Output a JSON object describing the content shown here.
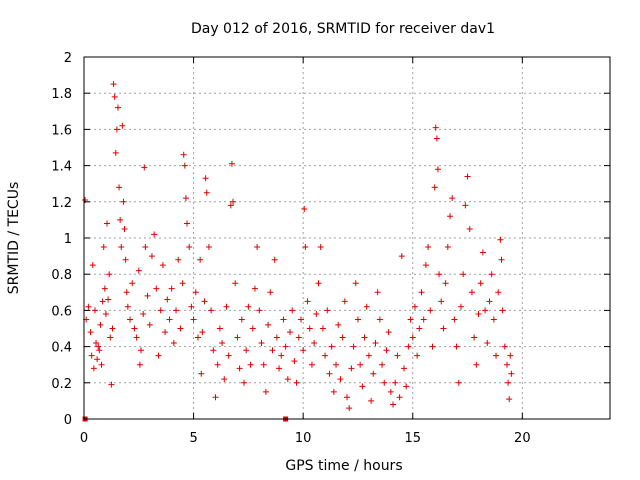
{
  "chart_data": {
    "type": "scatter",
    "title": "Day 012 of 2016, SRMTID for receiver dav1",
    "xlabel": "GPS time / hours",
    "ylabel": "SRMTID / TECUs",
    "xlim": [
      0,
      24
    ],
    "ylim": [
      0,
      2
    ],
    "xticks": [
      0,
      5,
      10,
      15,
      20
    ],
    "xtick_labels": [
      "0",
      "5",
      "10",
      "15",
      "20"
    ],
    "yticks": [
      0,
      0.2,
      0.4,
      0.6,
      0.8,
      1,
      1.2,
      1.4,
      1.6,
      1.8,
      2
    ],
    "ytick_labels": [
      "0",
      "0.2",
      "0.4",
      "0.6",
      "0.8",
      "1",
      "1.2",
      "1.4",
      "1.6",
      "1.8",
      "2"
    ],
    "grid": true,
    "marker": "plus",
    "color": "#e00000",
    "series": [
      {
        "name": "SRMTID",
        "points": [
          [
            0.05,
            1.21
          ],
          [
            0.1,
            0.55
          ],
          [
            0.2,
            0.62
          ],
          [
            0.3,
            0.48
          ],
          [
            0.35,
            0.35
          ],
          [
            0.4,
            0.85
          ],
          [
            0.45,
            0.28
          ],
          [
            0.5,
            0.6
          ],
          [
            0.55,
            0.42
          ],
          [
            0.6,
            0.33
          ],
          [
            0.65,
            0.4
          ],
          [
            0.7,
            0.38
          ],
          [
            0.75,
            0.52
          ],
          [
            0.8,
            0.3
          ],
          [
            0.85,
            0.65
          ],
          [
            0.9,
            0.95
          ],
          [
            0.95,
            0.72
          ],
          [
            1.0,
            0.58
          ],
          [
            1.05,
            1.08
          ],
          [
            1.1,
            0.66
          ],
          [
            1.15,
            0.8
          ],
          [
            1.2,
            0.45
          ],
          [
            1.25,
            0.19
          ],
          [
            1.3,
            0.5
          ],
          [
            1.35,
            1.85
          ],
          [
            1.4,
            1.78
          ],
          [
            1.45,
            1.47
          ],
          [
            1.5,
            1.6
          ],
          [
            1.55,
            1.72
          ],
          [
            1.6,
            1.28
          ],
          [
            1.65,
            1.1
          ],
          [
            1.7,
            0.95
          ],
          [
            1.75,
            1.62
          ],
          [
            1.8,
            1.2
          ],
          [
            1.85,
            1.05
          ],
          [
            1.9,
            0.88
          ],
          [
            1.95,
            0.7
          ],
          [
            2.0,
            0.62
          ],
          [
            2.1,
            0.55
          ],
          [
            2.2,
            0.75
          ],
          [
            2.3,
            0.5
          ],
          [
            2.4,
            0.45
          ],
          [
            2.5,
            0.82
          ],
          [
            2.55,
            0.3
          ],
          [
            2.6,
            0.38
          ],
          [
            2.7,
            0.58
          ],
          [
            2.75,
            1.39
          ],
          [
            2.8,
            0.95
          ],
          [
            2.9,
            0.68
          ],
          [
            3.0,
            0.52
          ],
          [
            3.1,
            0.9
          ],
          [
            3.2,
            1.02
          ],
          [
            3.3,
            0.72
          ],
          [
            3.4,
            0.35
          ],
          [
            3.5,
            0.6
          ],
          [
            3.6,
            0.85
          ],
          [
            3.7,
            0.48
          ],
          [
            3.8,
            0.66
          ],
          [
            3.9,
            0.55
          ],
          [
            4.0,
            0.72
          ],
          [
            4.1,
            0.42
          ],
          [
            4.2,
            0.6
          ],
          [
            4.3,
            0.88
          ],
          [
            4.4,
            0.5
          ],
          [
            4.5,
            0.75
          ],
          [
            4.55,
            1.46
          ],
          [
            4.6,
            1.4
          ],
          [
            4.65,
            1.22
          ],
          [
            4.7,
            1.08
          ],
          [
            4.8,
            0.95
          ],
          [
            4.9,
            0.62
          ],
          [
            5.0,
            0.55
          ],
          [
            5.1,
            0.7
          ],
          [
            5.2,
            0.45
          ],
          [
            5.3,
            0.88
          ],
          [
            5.35,
            0.25
          ],
          [
            5.4,
            0.48
          ],
          [
            5.5,
            0.65
          ],
          [
            5.55,
            1.33
          ],
          [
            5.6,
            1.25
          ],
          [
            5.7,
            0.95
          ],
          [
            5.8,
            0.6
          ],
          [
            5.9,
            0.38
          ],
          [
            6.0,
            0.12
          ],
          [
            6.1,
            0.3
          ],
          [
            6.2,
            0.5
          ],
          [
            6.3,
            0.42
          ],
          [
            6.4,
            0.22
          ],
          [
            6.5,
            0.62
          ],
          [
            6.6,
            0.35
          ],
          [
            6.7,
            1.18
          ],
          [
            6.75,
            1.41
          ],
          [
            6.8,
            1.2
          ],
          [
            6.9,
            0.75
          ],
          [
            7.0,
            0.45
          ],
          [
            7.1,
            0.28
          ],
          [
            7.2,
            0.55
          ],
          [
            7.3,
            0.2
          ],
          [
            7.4,
            0.38
          ],
          [
            7.5,
            0.62
          ],
          [
            7.6,
            0.3
          ],
          [
            7.7,
            0.5
          ],
          [
            7.8,
            0.72
          ],
          [
            7.9,
            0.95
          ],
          [
            8.0,
            0.6
          ],
          [
            8.1,
            0.42
          ],
          [
            8.2,
            0.3
          ],
          [
            8.3,
            0.15
          ],
          [
            8.4,
            0.52
          ],
          [
            8.5,
            0.7
          ],
          [
            8.6,
            0.38
          ],
          [
            8.7,
            0.88
          ],
          [
            8.8,
            0.45
          ],
          [
            8.9,
            0.28
          ],
          [
            9.0,
            0.35
          ],
          [
            9.1,
            0.55
          ],
          [
            9.2,
            0.4
          ],
          [
            9.3,
            0.22
          ],
          [
            9.4,
            0.48
          ],
          [
            9.5,
            0.6
          ],
          [
            9.6,
            0.32
          ],
          [
            9.7,
            0.2
          ],
          [
            9.8,
            0.45
          ],
          [
            9.9,
            0.55
          ],
          [
            10.0,
            0.38
          ],
          [
            10.05,
            1.16
          ],
          [
            10.1,
            0.95
          ],
          [
            10.2,
            0.65
          ],
          [
            10.3,
            0.5
          ],
          [
            10.4,
            0.3
          ],
          [
            10.5,
            0.42
          ],
          [
            10.6,
            0.58
          ],
          [
            10.7,
            0.75
          ],
          [
            10.8,
            0.95
          ],
          [
            10.9,
            0.5
          ],
          [
            11.0,
            0.35
          ],
          [
            11.1,
            0.6
          ],
          [
            11.2,
            0.25
          ],
          [
            11.3,
            0.4
          ],
          [
            11.4,
            0.15
          ],
          [
            11.5,
            0.3
          ],
          [
            11.6,
            0.52
          ],
          [
            11.7,
            0.22
          ],
          [
            11.8,
            0.45
          ],
          [
            11.9,
            0.65
          ],
          [
            12.0,
            0.12
          ],
          [
            12.1,
            0.06
          ],
          [
            12.2,
            0.28
          ],
          [
            12.3,
            0.4
          ],
          [
            12.4,
            0.75
          ],
          [
            12.5,
            0.55
          ],
          [
            12.6,
            0.3
          ],
          [
            12.7,
            0.18
          ],
          [
            12.8,
            0.45
          ],
          [
            12.9,
            0.62
          ],
          [
            13.0,
            0.35
          ],
          [
            13.1,
            0.1
          ],
          [
            13.2,
            0.25
          ],
          [
            13.3,
            0.42
          ],
          [
            13.4,
            0.7
          ],
          [
            13.5,
            0.55
          ],
          [
            13.6,
            0.3
          ],
          [
            13.7,
            0.2
          ],
          [
            13.8,
            0.38
          ],
          [
            13.9,
            0.48
          ],
          [
            14.0,
            0.15
          ],
          [
            14.1,
            0.08
          ],
          [
            14.2,
            0.2
          ],
          [
            14.3,
            0.35
          ],
          [
            14.4,
            0.12
          ],
          [
            14.5,
            0.9
          ],
          [
            14.6,
            0.28
          ],
          [
            14.7,
            0.18
          ],
          [
            14.8,
            0.4
          ],
          [
            14.9,
            0.55
          ],
          [
            15.0,
            0.45
          ],
          [
            15.1,
            0.62
          ],
          [
            15.2,
            0.35
          ],
          [
            15.3,
            0.5
          ],
          [
            15.4,
            0.7
          ],
          [
            15.5,
            0.55
          ],
          [
            15.6,
            0.85
          ],
          [
            15.7,
            0.95
          ],
          [
            15.8,
            0.6
          ],
          [
            15.9,
            0.4
          ],
          [
            16.0,
            1.28
          ],
          [
            16.05,
            1.61
          ],
          [
            16.1,
            1.55
          ],
          [
            16.15,
            1.38
          ],
          [
            16.2,
            0.8
          ],
          [
            16.3,
            0.65
          ],
          [
            16.4,
            0.5
          ],
          [
            16.5,
            0.75
          ],
          [
            16.6,
            0.95
          ],
          [
            16.7,
            1.12
          ],
          [
            16.8,
            1.22
          ],
          [
            16.9,
            0.55
          ],
          [
            17.0,
            0.4
          ],
          [
            17.1,
            0.2
          ],
          [
            17.2,
            0.62
          ],
          [
            17.3,
            0.8
          ],
          [
            17.4,
            1.18
          ],
          [
            17.5,
            1.34
          ],
          [
            17.6,
            1.05
          ],
          [
            17.7,
            0.7
          ],
          [
            17.8,
            0.45
          ],
          [
            17.9,
            0.3
          ],
          [
            18.0,
            0.58
          ],
          [
            18.1,
            0.75
          ],
          [
            18.2,
            0.92
          ],
          [
            18.3,
            0.6
          ],
          [
            18.4,
            0.42
          ],
          [
            18.5,
            0.65
          ],
          [
            18.6,
            0.8
          ],
          [
            18.7,
            0.55
          ],
          [
            18.8,
            0.35
          ],
          [
            18.9,
            0.7
          ],
          [
            19.0,
            0.99
          ],
          [
            19.05,
            0.88
          ],
          [
            19.1,
            0.6
          ],
          [
            19.2,
            0.4
          ],
          [
            19.3,
            0.3
          ],
          [
            19.35,
            0.2
          ],
          [
            19.4,
            0.11
          ],
          [
            19.45,
            0.35
          ],
          [
            19.5,
            0.25
          ]
        ]
      }
    ],
    "markers_at_zero": [
      [
        0.05,
        0.0
      ],
      [
        9.2,
        0.0
      ]
    ]
  }
}
